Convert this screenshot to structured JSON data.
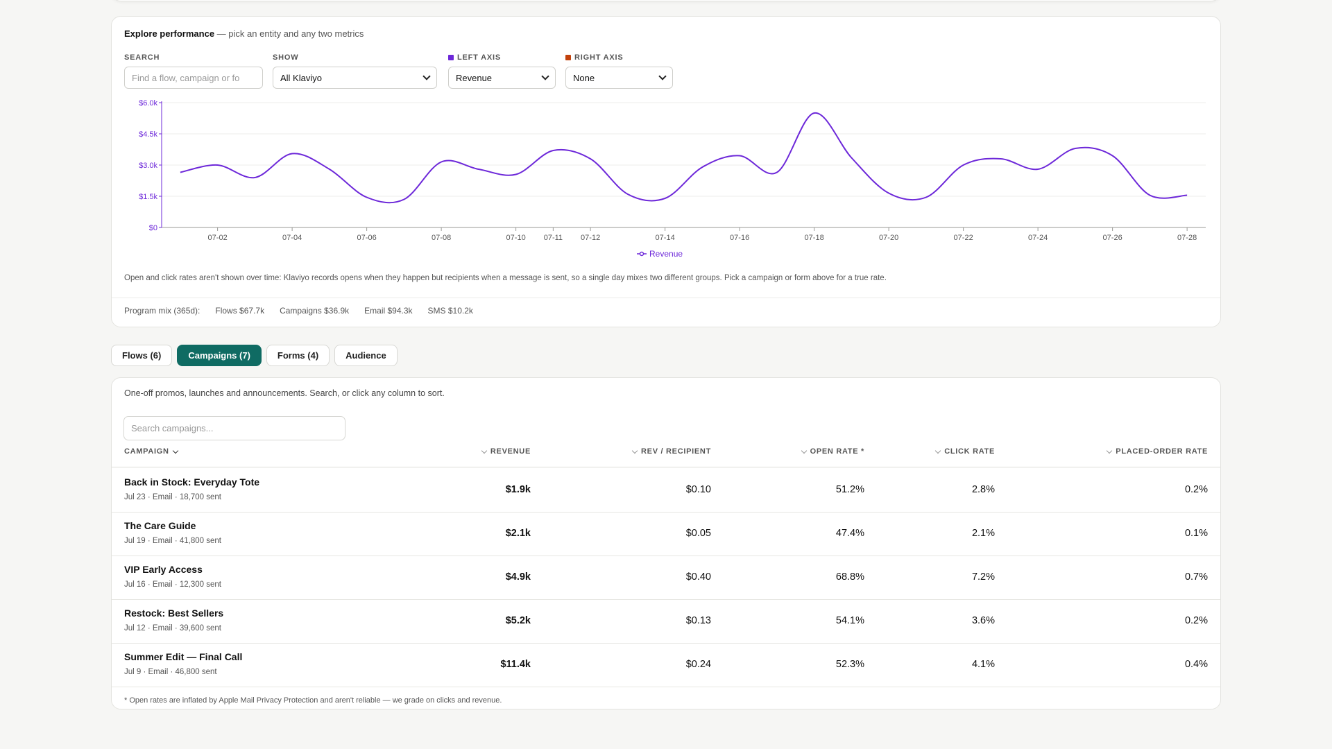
{
  "explore": {
    "title": "Explore performance",
    "subtitle": "— pick an entity and any two metrics",
    "search_label": "SEARCH",
    "search_placeholder": "Find a flow, campaign or fo",
    "show_label": "SHOW",
    "show_value": "All Klaviyo",
    "left_axis_label": "LEFT AXIS",
    "left_axis_value": "Revenue",
    "right_axis_label": "RIGHT AXIS",
    "right_axis_value": "None",
    "left_color": "#6d28d9",
    "right_color": "#c2410c",
    "note": "Open and click rates aren't shown over time: Klaviyo records opens when they happen but recipients when a message is sent, so a single day mixes two different groups. Pick a campaign or form above for a true rate.",
    "mix": [
      "Program mix (365d):",
      "Flows $67.7k",
      "Campaigns $36.9k",
      "Email $94.3k",
      "SMS $10.2k"
    ]
  },
  "chart_data": {
    "type": "line",
    "title": "",
    "xlabel": "",
    "ylabel": "",
    "ylim": [
      0,
      6000
    ],
    "yticks": [
      "$0",
      "$1.5k",
      "$3.0k",
      "$4.5k",
      "$6.0k"
    ],
    "xticks": [
      "07-02",
      "07-04",
      "07-06",
      "07-08",
      "07-10",
      "07-11",
      "07-12",
      "07-14",
      "07-16",
      "07-18",
      "07-20",
      "07-22",
      "07-24",
      "07-26",
      "07-28"
    ],
    "x": [
      1,
      2,
      3,
      4,
      5,
      6,
      7,
      8,
      9,
      10,
      11,
      12,
      13,
      14,
      15,
      16,
      17,
      18,
      19,
      20,
      21,
      22,
      23,
      24,
      25,
      26,
      27,
      28
    ],
    "series": [
      {
        "name": "Revenue",
        "color": "#6d28d9",
        "values": [
          2650,
          3000,
          2400,
          3550,
          2800,
          1450,
          1350,
          3150,
          2800,
          2550,
          3700,
          3300,
          1600,
          1400,
          2900,
          3450,
          2650,
          5500,
          3350,
          1650,
          1450,
          3000,
          3300,
          2800,
          3800,
          3450,
          1550,
          1550
        ]
      }
    ],
    "grid": true,
    "legend": "bottom-center"
  },
  "tabs": [
    {
      "label": "Flows (6)",
      "active": false
    },
    {
      "label": "Campaigns (7)",
      "active": true
    },
    {
      "label": "Forms (4)",
      "active": false
    },
    {
      "label": "Audience",
      "active": false
    }
  ],
  "campaigns": {
    "description": "One-off promos, launches and announcements. Search, or click any column to sort.",
    "search_placeholder": "Search campaigns...",
    "columns": [
      "CAMPAIGN",
      "REVENUE",
      "REV / RECIPIENT",
      "OPEN RATE *",
      "CLICK RATE",
      "PLACED-ORDER RATE"
    ],
    "rows": [
      {
        "name": "Back in Stock: Everyday Tote",
        "meta": "Jul 23 · Email · 18,700 sent",
        "revenue": "$1.9k",
        "rev_per_recipient": "$0.10",
        "open_rate": "51.2%",
        "click_rate": "2.8%",
        "placed_order_rate": "0.2%"
      },
      {
        "name": "The Care Guide",
        "meta": "Jul 19 · Email · 41,800 sent",
        "revenue": "$2.1k",
        "rev_per_recipient": "$0.05",
        "open_rate": "47.4%",
        "click_rate": "2.1%",
        "placed_order_rate": "0.1%"
      },
      {
        "name": "VIP Early Access",
        "meta": "Jul 16 · Email · 12,300 sent",
        "revenue": "$4.9k",
        "rev_per_recipient": "$0.40",
        "open_rate": "68.8%",
        "click_rate": "7.2%",
        "placed_order_rate": "0.7%"
      },
      {
        "name": "Restock: Best Sellers",
        "meta": "Jul 12 · Email · 39,600 sent",
        "revenue": "$5.2k",
        "rev_per_recipient": "$0.13",
        "open_rate": "54.1%",
        "click_rate": "3.6%",
        "placed_order_rate": "0.2%"
      },
      {
        "name": "Summer Edit — Final Call",
        "meta": "Jul 9 · Email · 46,800 sent",
        "revenue": "$11.4k",
        "rev_per_recipient": "$0.24",
        "open_rate": "52.3%",
        "click_rate": "4.1%",
        "placed_order_rate": "0.4%"
      }
    ],
    "footnote": "* Open rates are inflated by Apple Mail Privacy Protection and aren't reliable — we grade on clicks and revenue."
  }
}
